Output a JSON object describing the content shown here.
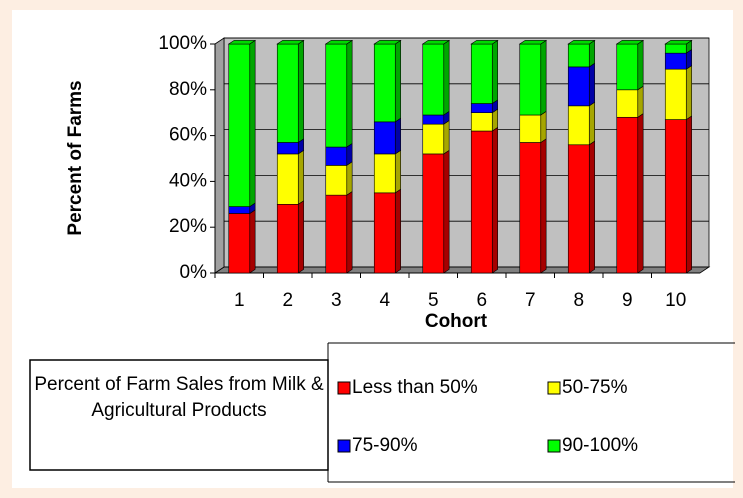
{
  "chart_data": {
    "type": "stacked_bar",
    "y_label": "Percent of Farms",
    "x_label": "Cohort",
    "legend_title": "Percent of Farm Sales from Milk & Agricultural Products",
    "categories": [
      "1",
      "2",
      "3",
      "4",
      "5",
      "6",
      "7",
      "8",
      "9",
      "10"
    ],
    "series": [
      {
        "name": "Less than 50%",
        "color": "#ff0000",
        "values": [
          26,
          30,
          34,
          35,
          52,
          62,
          57,
          56,
          68,
          67
        ]
      },
      {
        "name": "50-75%",
        "color": "#ffff00",
        "values": [
          0,
          22,
          13,
          17,
          13,
          8,
          12,
          17,
          12,
          22
        ]
      },
      {
        "name": "75-90%",
        "color": "#0000ff",
        "values": [
          3,
          5,
          8,
          14,
          4,
          4,
          0,
          17,
          0,
          7
        ]
      },
      {
        "name": "90-100%",
        "color": "#00ff00",
        "values": [
          71,
          43,
          45,
          34,
          31,
          26,
          31,
          10,
          20,
          4
        ]
      }
    ],
    "ylim": [
      0,
      100
    ],
    "yticks": [
      {
        "value": 0,
        "label": "0%"
      },
      {
        "value": 20,
        "label": "20%"
      },
      {
        "value": 40,
        "label": "40%"
      },
      {
        "value": 60,
        "label": "60%"
      },
      {
        "value": 80,
        "label": "80%"
      },
      {
        "value": 100,
        "label": "100%"
      }
    ],
    "grid": true
  }
}
